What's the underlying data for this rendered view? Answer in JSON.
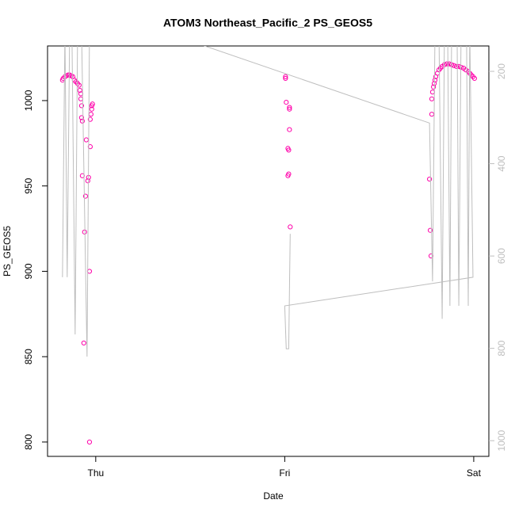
{
  "chart_data": {
    "type": "scatter",
    "title": "ATOM3 Northeast_Pacific_2 PS_GEOS5",
    "xlabel": "Date",
    "ylabel": "PS_GEOS5",
    "xlim": [
      -0.255,
      2.08
    ],
    "xticks": [
      {
        "value": 0,
        "label": "Thu"
      },
      {
        "value": 1,
        "label": "Fri"
      },
      {
        "value": 2,
        "label": "Sat"
      }
    ],
    "ylim": [
      791.6,
      1032
    ],
    "yticks": [
      800,
      850,
      900,
      950,
      1000
    ],
    "y2lim": [
      1034,
      145
    ],
    "y2ticks": [
      200,
      400,
      600,
      800,
      1000
    ],
    "y2color": "#bebebe",
    "series": [
      {
        "color": "#ff00aa",
        "x": [
          -0.176,
          -0.172,
          -0.163,
          -0.155,
          -0.146,
          -0.138,
          -0.13,
          -0.121,
          -0.113,
          -0.105,
          -0.096,
          -0.088,
          -0.084,
          -0.079,
          -0.079,
          -0.075,
          -0.075,
          -0.071,
          -0.071,
          -0.063,
          -0.059,
          -0.054,
          -0.05,
          -0.042,
          -0.038,
          -0.033,
          -0.033,
          -0.029,
          -0.029,
          -0.025,
          -0.021,
          -0.021,
          -0.017,
          1.004,
          1.004,
          1.008,
          1.025,
          1.025,
          1.025,
          1.017,
          1.021,
          1.021,
          1.017,
          1.029,
          1.766,
          1.77,
          1.774,
          1.778,
          1.778,
          1.782,
          1.787,
          1.791,
          1.795,
          1.799,
          1.808,
          1.816,
          1.824,
          1.833,
          1.845,
          1.858,
          1.87,
          1.883,
          1.895,
          1.908,
          1.921,
          1.933,
          1.946,
          1.958,
          1.971,
          1.979,
          1.987,
          1.996,
          2.004
        ],
        "values": [
          1012,
          1013,
          1014,
          1014.5,
          1015,
          1015,
          1014.5,
          1014,
          1012,
          1011,
          1010,
          1009,
          1006,
          1004,
          1001,
          997,
          990,
          988,
          956,
          858,
          923,
          944,
          977,
          953,
          955,
          900,
          800,
          973,
          989,
          992,
          995,
          997,
          998,
          1014,
          1013,
          999,
          996,
          995,
          983,
          972,
          971,
          957,
          956,
          926,
          954,
          924,
          909,
          992,
          1001,
          1005,
          1008,
          1010,
          1012,
          1014,
          1016,
          1018,
          1019,
          1020,
          1021,
          1021.5,
          1021.5,
          1021,
          1020.5,
          1020,
          1020,
          1019.5,
          1019,
          1018,
          1017,
          1016,
          1015,
          1014,
          1013
        ]
      },
      {
        "type": "line",
        "axis": "y2",
        "color": "#bebebe",
        "x": [
          -0.176,
          -0.163,
          -0.151,
          -0.138,
          -0.126,
          -0.109,
          -0.096,
          -0.075,
          -0.046,
          -0.033,
          -0.021,
          1.766,
          1.782,
          1.795,
          1.816,
          1.833,
          1.845,
          1.862,
          1.874,
          1.883,
          1.912,
          1.921,
          1.933,
          1.962,
          1.971,
          1.979,
          1.996,
          1.0,
          1.008,
          1.021,
          1.029
        ],
        "values": [
          646,
          114,
          646,
          114,
          114,
          770,
          114,
          114,
          818,
          114,
          61,
          312,
          655,
          114,
          114,
          736,
          114,
          114,
          708,
          114,
          114,
          708,
          114,
          114,
          708,
          114,
          646,
          708,
          801,
          801,
          552
        ]
      }
    ]
  }
}
